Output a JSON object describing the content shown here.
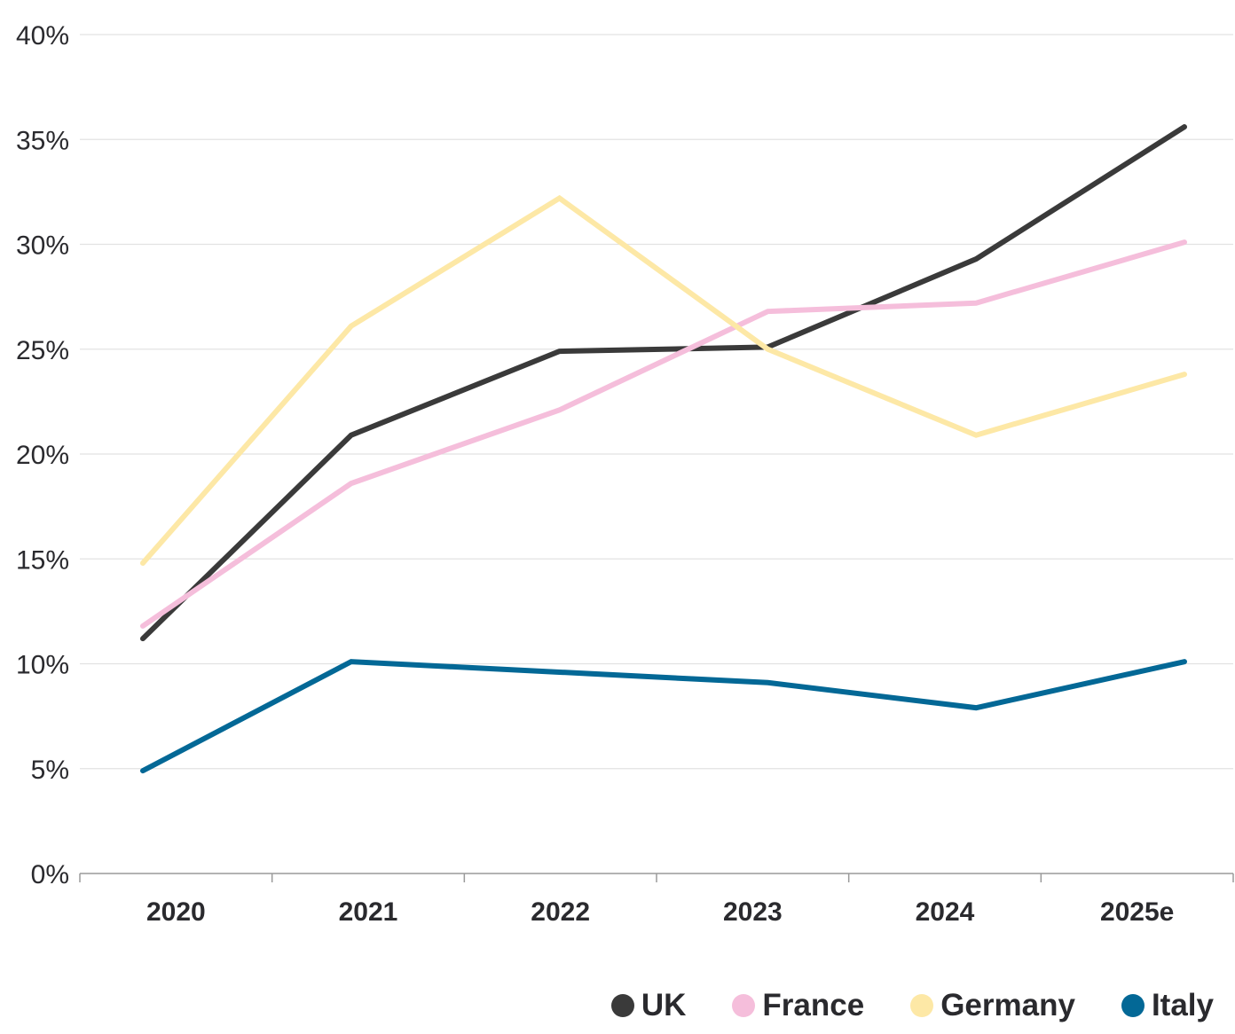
{
  "chart_data": {
    "type": "line",
    "title": "",
    "xlabel": "",
    "ylabel": "",
    "categories": [
      "2020",
      "2021",
      "2022",
      "2023",
      "2024",
      "2025e"
    ],
    "ylim": [
      0,
      40
    ],
    "yticks": [
      0,
      5,
      10,
      15,
      20,
      25,
      30,
      35,
      40
    ],
    "ytick_labels": [
      "0%",
      "5%",
      "10%",
      "15%",
      "20%",
      "25%",
      "30%",
      "35%",
      "40%"
    ],
    "grid": true,
    "legend_position": "bottom-right",
    "series": [
      {
        "name": "UK",
        "color": "#3a3a3a",
        "values": [
          11.2,
          20.9,
          24.9,
          25.1,
          29.3,
          35.6
        ]
      },
      {
        "name": "France",
        "color": "#f5bedb",
        "values": [
          11.8,
          18.6,
          22.1,
          26.8,
          27.2,
          30.1
        ]
      },
      {
        "name": "Germany",
        "color": "#fde8a6",
        "values": [
          14.8,
          26.1,
          32.2,
          25.0,
          20.9,
          23.8
        ]
      },
      {
        "name": "Italy",
        "color": "#036896",
        "values": [
          4.9,
          10.1,
          9.6,
          9.1,
          7.9,
          10.1
        ]
      }
    ]
  },
  "legend": {
    "items": [
      {
        "label": "UK",
        "color": "#3a3a3a"
      },
      {
        "label": "France",
        "color": "#f5bedb"
      },
      {
        "label": "Germany",
        "color": "#fde8a6"
      },
      {
        "label": "Italy",
        "color": "#036896"
      }
    ]
  }
}
